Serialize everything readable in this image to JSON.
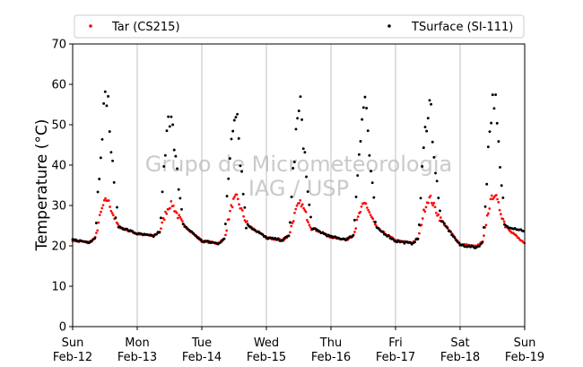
{
  "watermark": {
    "line1": "Grupo de Micrometeorologia",
    "line2": "IAG / USP"
  },
  "colors": {
    "tar": "#ff0000",
    "tsurface": "#000000",
    "grid": "#b0b0b0"
  },
  "chart_data": {
    "type": "scatter",
    "title": "",
    "xlabel": "",
    "ylabel": "Temperature (°C)",
    "ylim": [
      0,
      70
    ],
    "yticks": [
      0,
      10,
      20,
      30,
      40,
      50,
      60,
      70
    ],
    "xlim_days": [
      0,
      7
    ],
    "grid": "vertical at day boundaries",
    "legend_placement": "top, above plot",
    "xticks": [
      {
        "day": "Sun",
        "date": "Feb-12"
      },
      {
        "day": "Mon",
        "date": "Feb-13"
      },
      {
        "day": "Tue",
        "date": "Feb-14"
      },
      {
        "day": "Wed",
        "date": "Feb-15"
      },
      {
        "day": "Thu",
        "date": "Feb-16"
      },
      {
        "day": "Fri",
        "date": "Feb-17"
      },
      {
        "day": "Sat",
        "date": "Feb-18"
      },
      {
        "day": "Sun",
        "date": "Feb-19"
      }
    ],
    "series": [
      {
        "name": "Tar (CS215)",
        "color": "#ff0000",
        "daily": [
          {
            "min": 20.8,
            "max": 31.5,
            "evening": 24.8
          },
          {
            "min": 22.4,
            "max": 30.3,
            "evening": 25.3
          },
          {
            "min": 20.6,
            "max": 32.0,
            "evening": 25.2
          },
          {
            "min": 21.4,
            "max": 30.6,
            "evening": 24.4
          },
          {
            "min": 21.6,
            "max": 30.4,
            "evening": 24.4
          },
          {
            "min": 20.7,
            "max": 31.8,
            "evening": 26.3
          },
          {
            "min": 19.8,
            "max": 32.8,
            "evening": 24.9
          }
        ]
      },
      {
        "name": "TSurface (SI-111)",
        "color": "#000000",
        "daily": [
          {
            "min": 20.9,
            "max": 57.7,
            "evening": 24.8
          },
          {
            "min": 22.4,
            "max": 53.8,
            "evening": 25.3
          },
          {
            "min": 20.6,
            "max": 54.8,
            "evening": 25.2
          },
          {
            "min": 21.4,
            "max": 54.5,
            "evening": 24.4
          },
          {
            "min": 21.6,
            "max": 56.3,
            "evening": 24.4
          },
          {
            "min": 20.6,
            "max": 55.6,
            "evening": 26.3
          },
          {
            "min": 19.6,
            "max": 57.2,
            "evening": 24.9
          }
        ],
        "end_value": 23.1
      }
    ]
  }
}
